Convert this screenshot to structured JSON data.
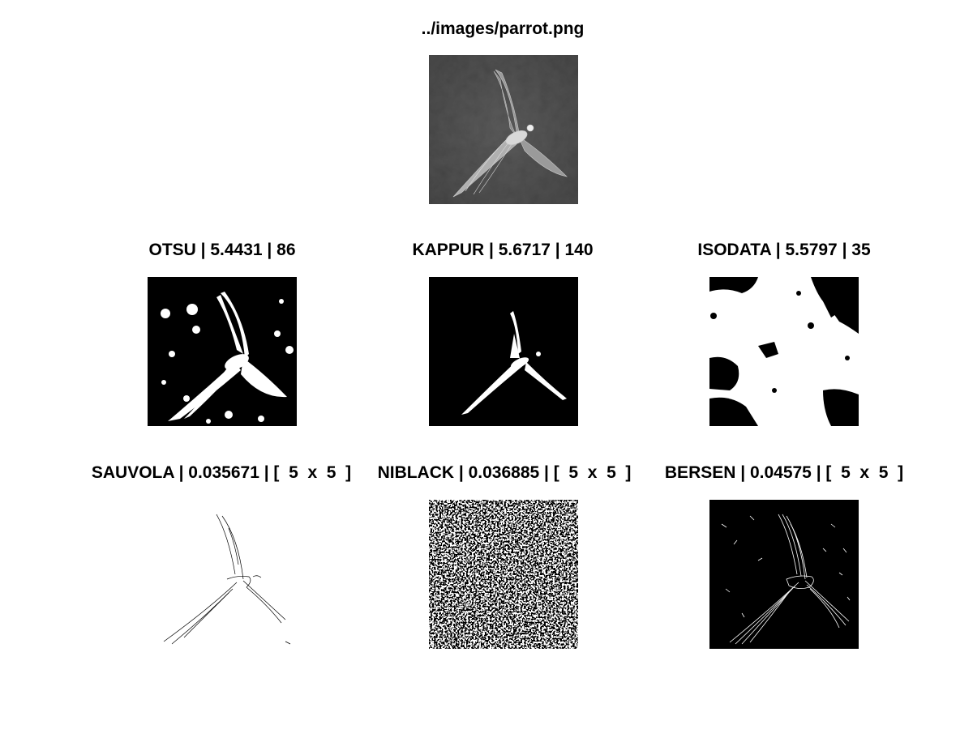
{
  "figure": {
    "original": {
      "title": "../images/parrot.png"
    },
    "panels": [
      {
        "title": "OTSU | 5.4431 | 86"
      },
      {
        "title": "KAPPUR | 5.6717 | 140"
      },
      {
        "title": "ISODATA | 5.5797 | 35"
      },
      {
        "title": "SAUVOLA | 0.035671 | [  5  x  5  ]"
      },
      {
        "title": "NIBLACK | 0.036885 | [  5  x  5  ]"
      },
      {
        "title": "BERSEN | 0.04575 | [  5  x  5  ]"
      }
    ]
  },
  "colors": {
    "background": "#ffffff",
    "text": "#000000",
    "ink_dark": "#000000",
    "ink_light": "#ffffff"
  }
}
